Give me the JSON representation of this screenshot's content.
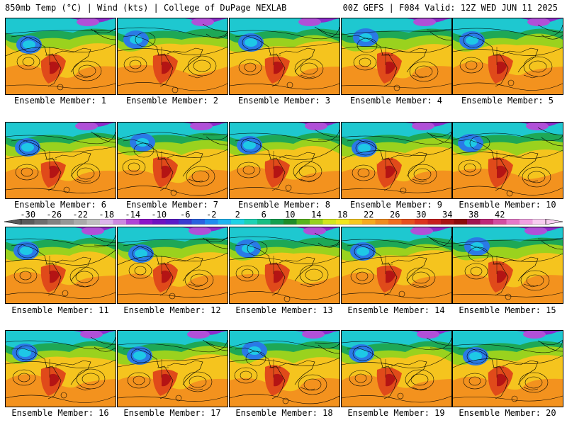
{
  "header": {
    "left_title": "850mb Temp (°C) | Wind (kts) | College of DuPage NEXLAB",
    "right_title": "00Z GEFS | F084 Valid: 12Z WED JUN 11 2025"
  },
  "members": [
    {
      "label": "Ensemble Member: 1"
    },
    {
      "label": "Ensemble Member: 2"
    },
    {
      "label": "Ensemble Member: 3"
    },
    {
      "label": "Ensemble Member: 4"
    },
    {
      "label": "Ensemble Member: 5"
    },
    {
      "label": "Ensemble Member: 6"
    },
    {
      "label": "Ensemble Member: 7"
    },
    {
      "label": "Ensemble Member: 8"
    },
    {
      "label": "Ensemble Member: 9"
    },
    {
      "label": "Ensemble Member: 10"
    },
    {
      "label": "Ensemble Member: 11"
    },
    {
      "label": "Ensemble Member: 12"
    },
    {
      "label": "Ensemble Member: 13"
    },
    {
      "label": "Ensemble Member: 14"
    },
    {
      "label": "Ensemble Member: 15"
    },
    {
      "label": "Ensemble Member: 16"
    },
    {
      "label": "Ensemble Member: 17"
    },
    {
      "label": "Ensemble Member: 18"
    },
    {
      "label": "Ensemble Member: 19"
    },
    {
      "label": "Ensemble Member: 20"
    }
  ],
  "colorbar": {
    "labels": [
      "-30",
      "-26",
      "-22",
      "-18",
      "-14",
      "-10",
      "-6",
      "-2",
      "2",
      "6",
      "10",
      "14",
      "18",
      "22",
      "26",
      "30",
      "34",
      "38",
      "42"
    ],
    "colors": [
      "#5a5a5a",
      "#6e6e6e",
      "#828282",
      "#969696",
      "#aaaaaa",
      "#c0c0c0",
      "#dcb4ec",
      "#cc88e0",
      "#b044d6",
      "#8c14c8",
      "#6e12c0",
      "#5a1ac8",
      "#3a3ad0",
      "#2a62e0",
      "#1e8cf0",
      "#1eb4f0",
      "#1ed2e6",
      "#1ed2b4",
      "#18be82",
      "#14a050",
      "#1e8c28",
      "#58b41e",
      "#96d21e",
      "#d2e61e",
      "#f0e61e",
      "#f6c81e",
      "#f6aa1e",
      "#f08c1e",
      "#f06e1e",
      "#e6501e",
      "#dc321e",
      "#c81e1e",
      "#aa1414",
      "#8c0a0a",
      "#a01450",
      "#be2878",
      "#d24ea0",
      "#e678c8",
      "#f0a0e0",
      "#f8ccf0"
    ]
  }
}
